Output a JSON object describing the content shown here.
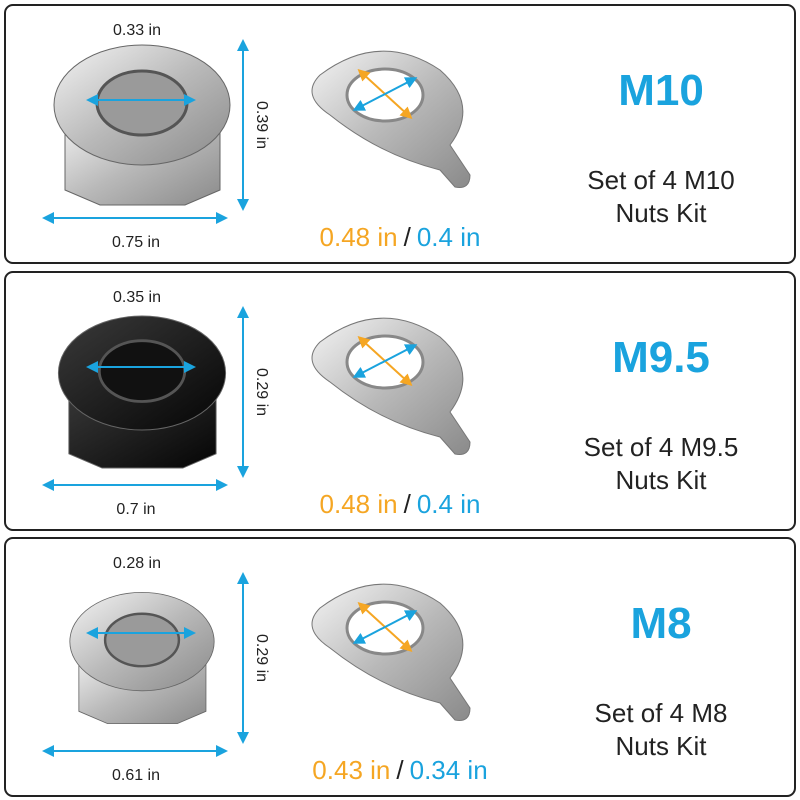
{
  "panels": [
    {
      "nut_top": "0.33 in",
      "nut_height": "0.39 in",
      "nut_width": "0.75 in",
      "washer_outer": "0.48 in",
      "separator": "/",
      "washer_inner": "0.4 in",
      "size": "M10",
      "description": [
        "Set of 4 M10",
        "Nuts Kit"
      ]
    },
    {
      "nut_top": "0.35 in",
      "nut_height": "0.29 in",
      "nut_width": "0.7 in",
      "washer_outer": "0.48 in",
      "separator": "/",
      "washer_inner": "0.4 in",
      "size": "M9.5",
      "description": [
        "Set of 4 M9.5",
        "Nuts Kit"
      ]
    },
    {
      "nut_top": "0.28 in",
      "nut_height": "0.29 in",
      "nut_width": "0.61 in",
      "washer_outer": "0.43 in",
      "separator": "/",
      "washer_inner": "0.34 in",
      "size": "M8",
      "description": [
        "Set of 4 M8",
        "Nuts Kit"
      ]
    }
  ]
}
